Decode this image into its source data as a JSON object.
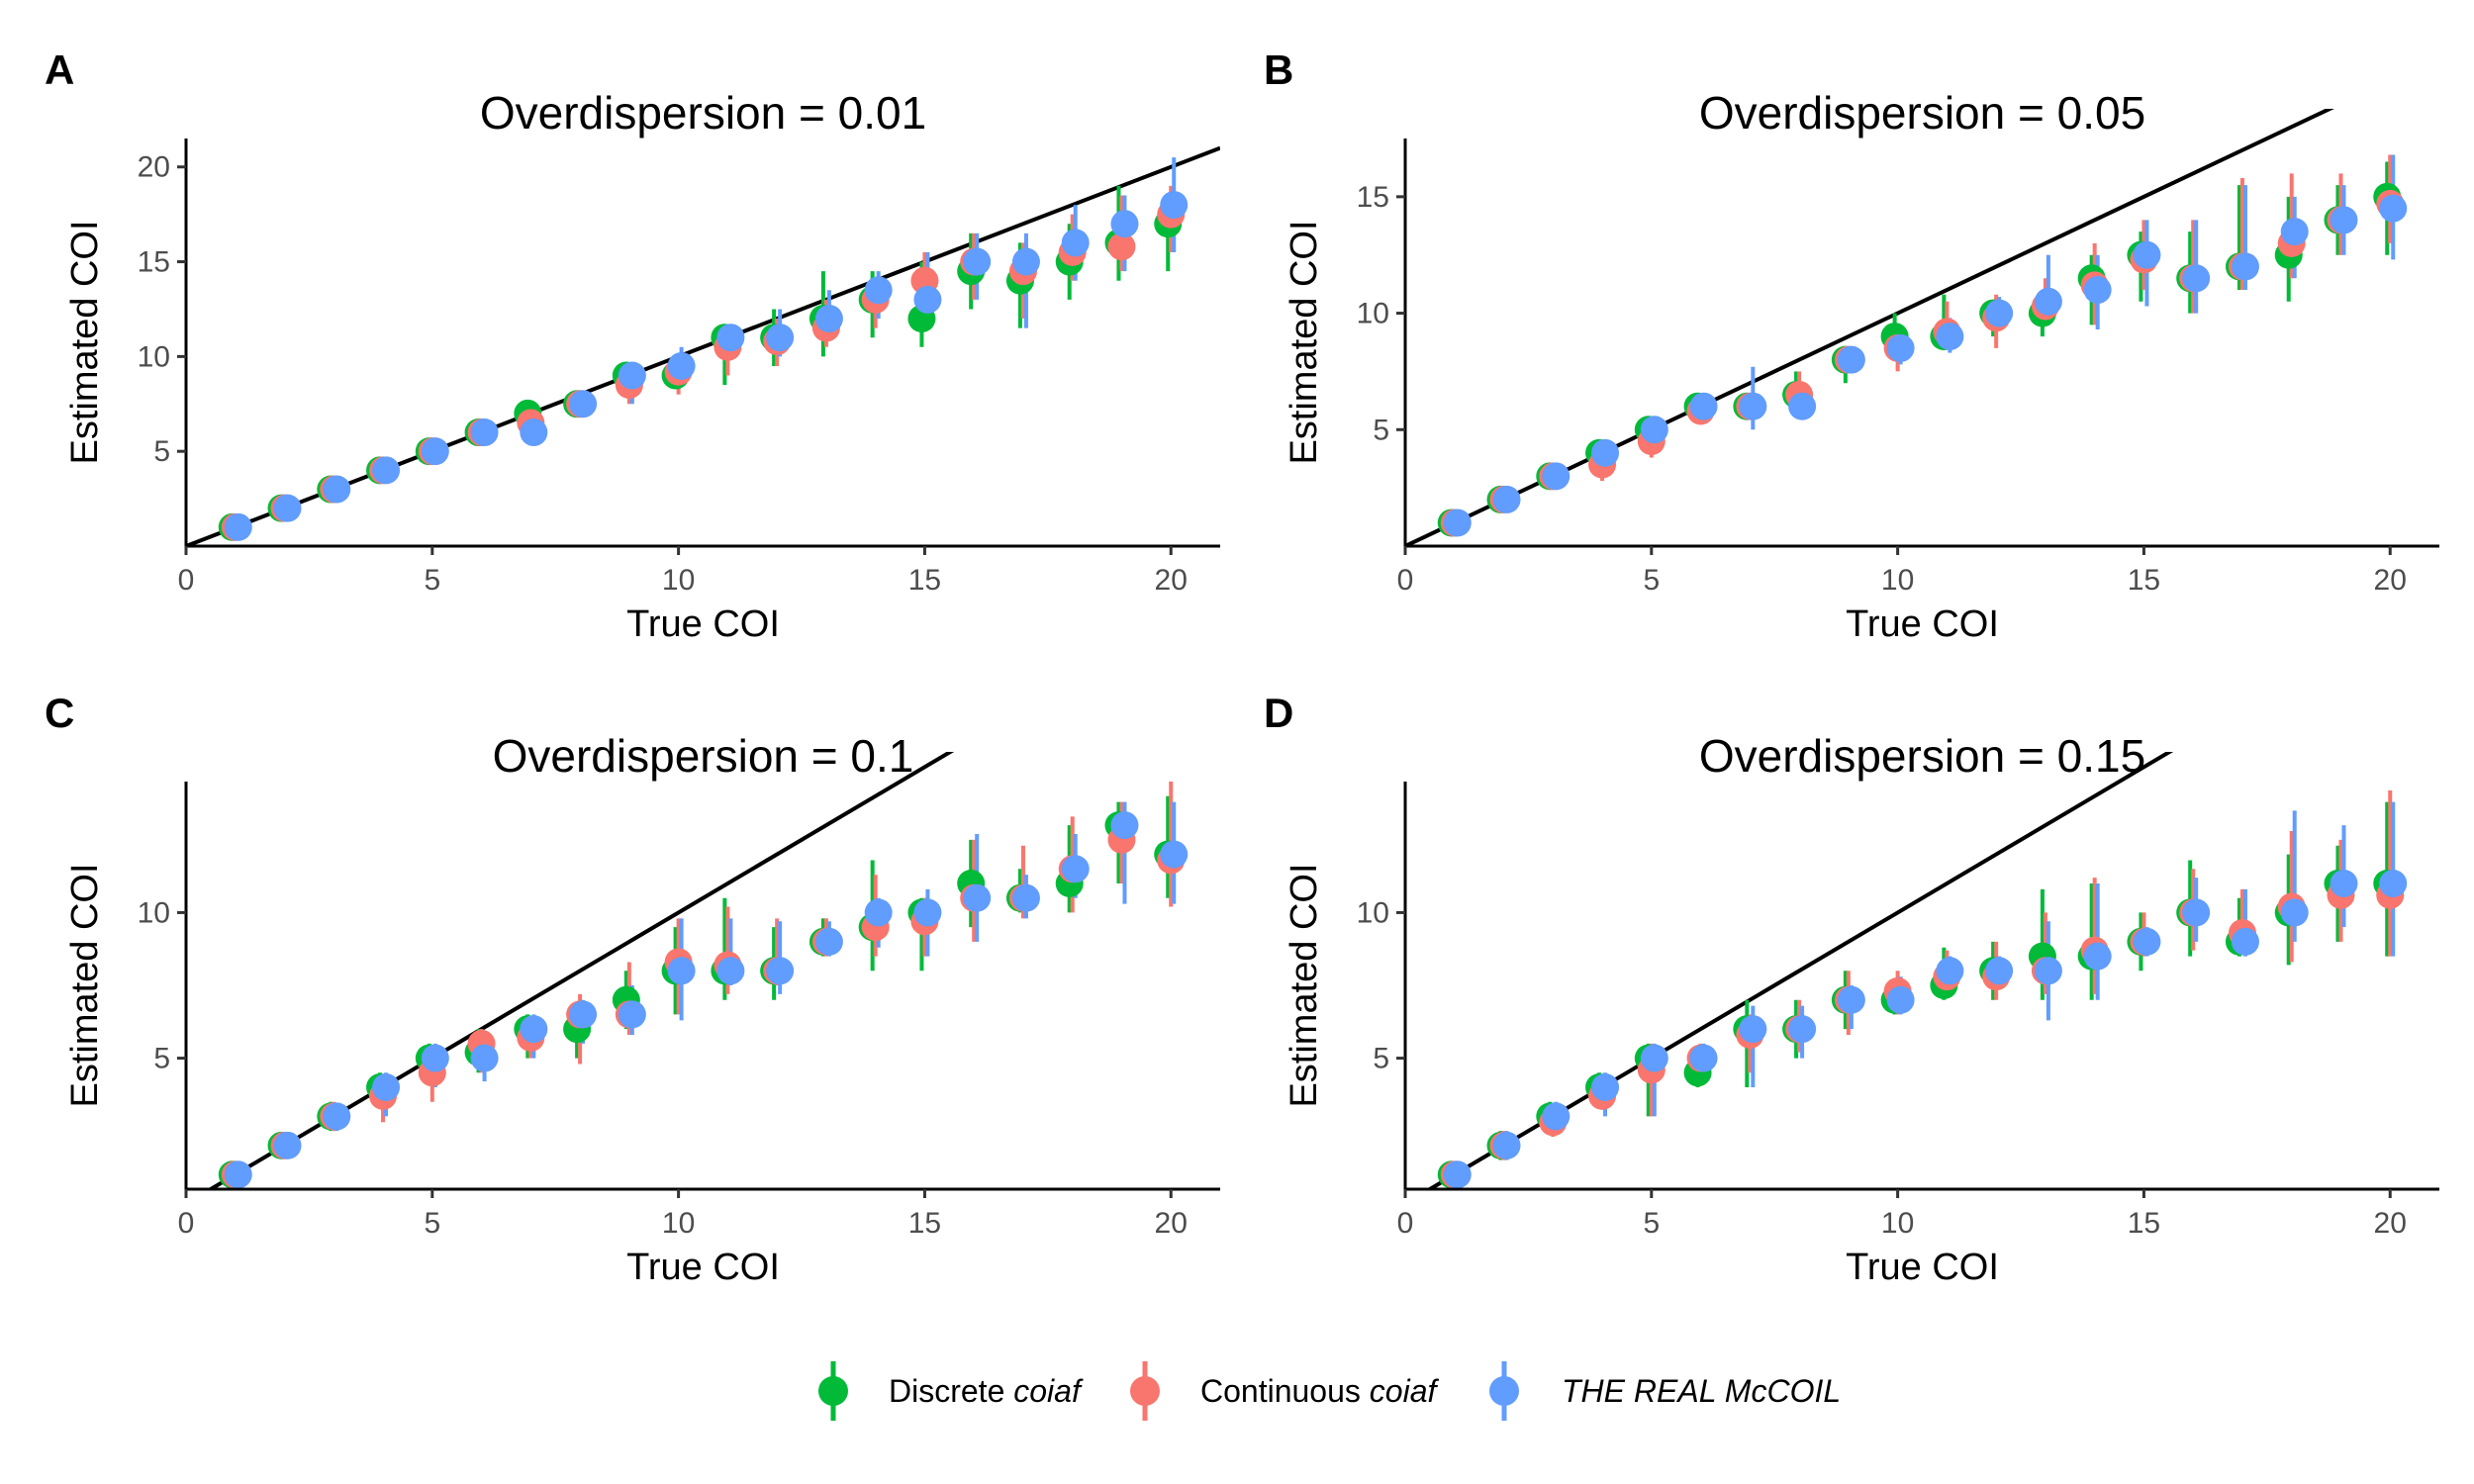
{
  "colors": {
    "discrete": "#00BA38",
    "continuous": "#F8766D",
    "mccoil": "#619CFF",
    "identity_line": "#000000"
  },
  "legend": {
    "placement": "bottom-center",
    "items": [
      {
        "key": "discrete",
        "text": "Discrete ",
        "italic_text": "coiaf"
      },
      {
        "key": "continuous",
        "text": "Continuous ",
        "italic_text": "coiaf"
      },
      {
        "key": "mccoil",
        "text": "",
        "italic_text": "THE REAL McCOIL"
      }
    ]
  },
  "chart_data": [
    {
      "type": "scatter",
      "panel": "A",
      "title": "Overdispersion = 0.01",
      "xlabel": "True COI",
      "ylabel": "Estimated COI",
      "xlim": [
        0,
        21
      ],
      "ylim": [
        0,
        21.5
      ],
      "xticks": [
        0,
        5,
        10,
        15,
        20
      ],
      "yticks": [
        5,
        10,
        15,
        20
      ],
      "identity_line": true,
      "grid": false,
      "x": [
        1,
        2,
        3,
        4,
        5,
        6,
        7,
        8,
        9,
        10,
        11,
        12,
        13,
        14,
        15,
        16,
        17,
        18,
        19,
        20
      ],
      "series": [
        {
          "key": "discrete",
          "name": "Discrete coiaf",
          "values": [
            1,
            2,
            3,
            4,
            5,
            6,
            7,
            7.5,
            9,
            9,
            11,
            11,
            12,
            13,
            12,
            14.5,
            14,
            15,
            16,
            17
          ],
          "lower": [
            1,
            2,
            3,
            4,
            5,
            6,
            6.5,
            7,
            8,
            8.5,
            8.5,
            9.5,
            10,
            11,
            10.5,
            12.5,
            11.5,
            13,
            14,
            14.5
          ],
          "upper": [
            1,
            2,
            3,
            4,
            5,
            6,
            7.5,
            8,
            9.5,
            10,
            11.5,
            12.5,
            14.5,
            14.5,
            15,
            16.5,
            16,
            17,
            19,
            18.5
          ]
        },
        {
          "key": "continuous",
          "name": "Continuous coiaf",
          "values": [
            1,
            2,
            3,
            4,
            5,
            6,
            6.5,
            7.5,
            8.5,
            9.2,
            10.5,
            10.8,
            11.5,
            13,
            14,
            15,
            14.5,
            15.5,
            15.8,
            17.5
          ],
          "lower": [
            1,
            2,
            3,
            4,
            5,
            6,
            6,
            7,
            7.5,
            8,
            9,
            9.5,
            10.5,
            11.5,
            12,
            13,
            12,
            14,
            14.5,
            15.5
          ],
          "upper": [
            1,
            2,
            3,
            4,
            5,
            6,
            7,
            8,
            9,
            10,
            11.5,
            12,
            13,
            14,
            15.5,
            16.5,
            16,
            17.5,
            18.5,
            19
          ]
        },
        {
          "key": "mccoil",
          "name": "THE REAL McCOIL",
          "values": [
            1,
            2,
            3,
            4,
            5,
            6,
            6,
            7.5,
            9,
            9.5,
            11,
            11,
            12,
            13.5,
            13,
            15,
            15,
            16,
            17,
            18
          ],
          "lower": [
            1,
            2,
            3,
            4,
            5,
            6,
            5.5,
            7,
            7.5,
            8.5,
            10,
            10,
            11,
            12,
            11.5,
            13,
            11.5,
            14,
            14.5,
            15.5
          ],
          "upper": [
            1,
            2,
            3,
            4,
            5,
            6,
            6.5,
            8,
            9.5,
            10.5,
            11.5,
            12.5,
            13.5,
            14.5,
            15.5,
            16.5,
            16.5,
            18,
            18.5,
            20.5
          ]
        }
      ]
    },
    {
      "type": "scatter",
      "panel": "B",
      "title": "Overdispersion = 0.05",
      "xlabel": "True COI",
      "ylabel": "Estimated COI",
      "xlim": [
        0,
        21
      ],
      "ylim": [
        0,
        17.5
      ],
      "xticks": [
        0,
        5,
        10,
        15,
        20
      ],
      "yticks": [
        5,
        10,
        15
      ],
      "identity_line": true,
      "grid": false,
      "x": [
        1,
        2,
        3,
        4,
        5,
        6,
        7,
        8,
        9,
        10,
        11,
        12,
        13,
        14,
        15,
        16,
        17,
        18,
        19,
        20
      ],
      "series": [
        {
          "key": "discrete",
          "name": "Discrete coiaf",
          "values": [
            1,
            2,
            3,
            4,
            5,
            6,
            6,
            6.5,
            8,
            9,
            9,
            10,
            10,
            11.5,
            12.5,
            11.5,
            12,
            12.5,
            14,
            15
          ],
          "lower": [
            1,
            2,
            3,
            3.5,
            4,
            5.5,
            5.5,
            6,
            7,
            8,
            8.5,
            9,
            9,
            9.5,
            10.5,
            10,
            11,
            10.5,
            12.5,
            12.5
          ],
          "upper": [
            1,
            2,
            3,
            4.5,
            5,
            6.5,
            6.5,
            7.5,
            8.5,
            10,
            10.8,
            10.5,
            11,
            12.5,
            13.5,
            13.5,
            15.5,
            15,
            15.5,
            16.5
          ]
        },
        {
          "key": "continuous",
          "name": "Continuous coiaf",
          "values": [
            1,
            2,
            3,
            3.5,
            4.5,
            5.8,
            6,
            6.5,
            8,
            8.5,
            9.2,
            9.8,
            10.3,
            11.2,
            12.3,
            11.5,
            12,
            13,
            14,
            14.7
          ],
          "lower": [
            1,
            2,
            3,
            2.8,
            3.8,
            5.3,
            5.5,
            6,
            7.5,
            7.5,
            8.5,
            8.5,
            9.5,
            9.5,
            11,
            10,
            11,
            11.5,
            12.5,
            13
          ],
          "upper": [
            1,
            2,
            3,
            4.2,
            5,
            6.3,
            6.5,
            7.5,
            8.5,
            9.5,
            10.5,
            10.8,
            11.5,
            13,
            14,
            14,
            15.8,
            16,
            16,
            16.8
          ]
        },
        {
          "key": "mccoil",
          "name": "THE REAL McCOIL",
          "values": [
            1,
            2,
            3,
            4,
            5,
            6,
            6,
            6,
            8,
            8.5,
            9,
            10,
            10.5,
            11,
            12.5,
            11.5,
            12,
            13.5,
            14,
            14.5
          ],
          "lower": [
            1,
            2,
            3,
            3.5,
            4.5,
            5.5,
            5,
            5.5,
            7.5,
            7.8,
            8.3,
            9.3,
            9.5,
            9.3,
            10.3,
            10,
            11,
            11.5,
            12.5,
            12.3
          ],
          "upper": [
            1,
            2,
            3,
            4.5,
            5.5,
            6.5,
            7.7,
            7,
            8.5,
            9.3,
            9.8,
            10.7,
            12.5,
            12.5,
            14,
            14,
            15.5,
            15,
            15.5,
            16.8
          ]
        }
      ]
    },
    {
      "type": "scatter",
      "panel": "C",
      "title": "Overdispersion = 0.1",
      "xlabel": "True COI",
      "ylabel": "Estimated COI",
      "xlim": [
        0,
        21
      ],
      "ylim": [
        0.5,
        14.5
      ],
      "xticks": [
        0,
        5,
        10,
        15,
        20
      ],
      "yticks": [
        5,
        10
      ],
      "identity_line": true,
      "grid": false,
      "x": [
        1,
        2,
        3,
        4,
        5,
        6,
        7,
        8,
        9,
        10,
        11,
        12,
        13,
        14,
        15,
        16,
        17,
        18,
        19,
        20
      ],
      "series": [
        {
          "key": "discrete",
          "name": "Discrete coiaf",
          "values": [
            1,
            2,
            3,
            4,
            5,
            5.2,
            6,
            6,
            7,
            8,
            8,
            8,
            9,
            9.5,
            10,
            11,
            10.5,
            11,
            13,
            12
          ],
          "lower": [
            1,
            2,
            2.5,
            3.5,
            4.5,
            4.5,
            5,
            5,
            6,
            6.5,
            7,
            7,
            8.5,
            8,
            8,
            9.5,
            10,
            10,
            11,
            10.5
          ],
          "upper": [
            1,
            2,
            3.5,
            4.5,
            5.5,
            6,
            6.5,
            6.5,
            8,
            9.5,
            10.5,
            9.5,
            9.8,
            11.8,
            10.5,
            12.5,
            11.5,
            13,
            13.8,
            14
          ]
        },
        {
          "key": "continuous",
          "name": "Continuous coiaf",
          "values": [
            1,
            2,
            3,
            3.7,
            4.5,
            5.5,
            5.7,
            6.5,
            6.5,
            8.3,
            8.2,
            8,
            9,
            9.5,
            9.7,
            10.5,
            10.5,
            11.5,
            12.5,
            11.8
          ],
          "lower": [
            1,
            2,
            2.5,
            2.8,
            3.5,
            4.5,
            5,
            4.8,
            5.8,
            6.5,
            7.2,
            7.5,
            8.5,
            8.5,
            8.5,
            9,
            9.8,
            10,
            11,
            10.2
          ],
          "upper": [
            1,
            2,
            3.5,
            4.2,
            5.2,
            6,
            6.2,
            7.2,
            8.3,
            9.8,
            10.2,
            9.8,
            9.8,
            11.3,
            10.5,
            12.5,
            12.3,
            13.3,
            13.8,
            14.5
          ]
        },
        {
          "key": "mccoil",
          "name": "THE REAL McCOIL",
          "values": [
            1,
            2,
            3,
            4,
            5,
            5,
            6,
            6.5,
            6.5,
            8,
            8,
            8,
            9,
            10,
            10,
            10.5,
            10.5,
            11.5,
            13,
            12
          ],
          "lower": [
            1,
            2,
            2.5,
            3,
            4,
            4.2,
            5,
            5.5,
            5.8,
            6.3,
            7.5,
            7.2,
            8.5,
            8.8,
            8.5,
            9,
            9.8,
            10.5,
            10.3,
            10.3
          ],
          "upper": [
            1,
            2,
            3.2,
            4.5,
            5.5,
            5.5,
            6.5,
            7,
            7.5,
            9.8,
            9.8,
            9.7,
            9.7,
            10.5,
            10.8,
            12.7,
            11.3,
            12.7,
            13.8,
            13.8
          ]
        }
      ]
    },
    {
      "type": "scatter",
      "panel": "D",
      "title": "Overdispersion = 0.15",
      "xlabel": "True COI",
      "ylabel": "Estimated COI",
      "xlim": [
        0,
        21
      ],
      "ylim": [
        0.5,
        14.5
      ],
      "xticks": [
        0,
        5,
        10,
        15,
        20
      ],
      "yticks": [
        5,
        10
      ],
      "identity_line": true,
      "grid": false,
      "x": [
        1,
        2,
        3,
        4,
        5,
        6,
        7,
        8,
        9,
        10,
        11,
        12,
        13,
        14,
        15,
        16,
        17,
        18,
        19,
        20
      ],
      "series": [
        {
          "key": "discrete",
          "name": "Discrete coiaf",
          "values": [
            1,
            2,
            3,
            4,
            5,
            4.5,
            6,
            6,
            7,
            7,
            7.5,
            8,
            8.5,
            8.5,
            9,
            10,
            9,
            10,
            11,
            11
          ],
          "lower": [
            1,
            1.5,
            2.5,
            3.5,
            3,
            4,
            4,
            5,
            6,
            6.5,
            7,
            7,
            7,
            7,
            8,
            8.5,
            8.5,
            8.2,
            9,
            8.5
          ],
          "upper": [
            1,
            2.5,
            3.5,
            4.5,
            5.5,
            5,
            7,
            7,
            8,
            7.5,
            8.8,
            9,
            10.8,
            11,
            10,
            11.8,
            10.5,
            12,
            12.3,
            13.8
          ]
        },
        {
          "key": "continuous",
          "name": "Continuous coiaf",
          "values": [
            1,
            2,
            2.8,
            3.7,
            4.6,
            5,
            5.8,
            6,
            7,
            7.3,
            7.8,
            7.8,
            8,
            8.7,
            9,
            10,
            9.3,
            10.2,
            10.6,
            10.6
          ],
          "lower": [
            1,
            1.5,
            2.3,
            3.3,
            3,
            4.5,
            4.5,
            5.2,
            5.8,
            6.5,
            7.2,
            7,
            7.2,
            7.2,
            8.5,
            8.7,
            8.8,
            8.3,
            9,
            8.5
          ],
          "upper": [
            1,
            2.5,
            3.3,
            4.3,
            5.5,
            5.5,
            6.5,
            7,
            8,
            8,
            8.7,
            9,
            10,
            11.2,
            10,
            11.5,
            10.8,
            12.8,
            12.5,
            14.2
          ]
        },
        {
          "key": "mccoil",
          "name": "THE REAL McCOIL",
          "values": [
            1,
            2,
            3,
            4,
            5,
            5,
            6,
            6,
            7,
            7,
            8,
            8,
            8,
            8.5,
            9,
            10,
            9,
            10,
            11,
            11
          ],
          "lower": [
            1,
            1.5,
            2.5,
            3,
            3,
            4.5,
            4,
            5,
            6,
            6.5,
            7.2,
            7.5,
            6.3,
            7,
            8.5,
            9,
            8.5,
            9,
            9.5,
            8.5
          ],
          "upper": [
            1,
            2.5,
            3.5,
            4.5,
            5.5,
            5.5,
            6.8,
            6.8,
            7.5,
            7.8,
            8.5,
            8.5,
            9.7,
            11,
            9.5,
            11.2,
            10.8,
            13.5,
            13,
            13.8
          ]
        }
      ]
    }
  ]
}
